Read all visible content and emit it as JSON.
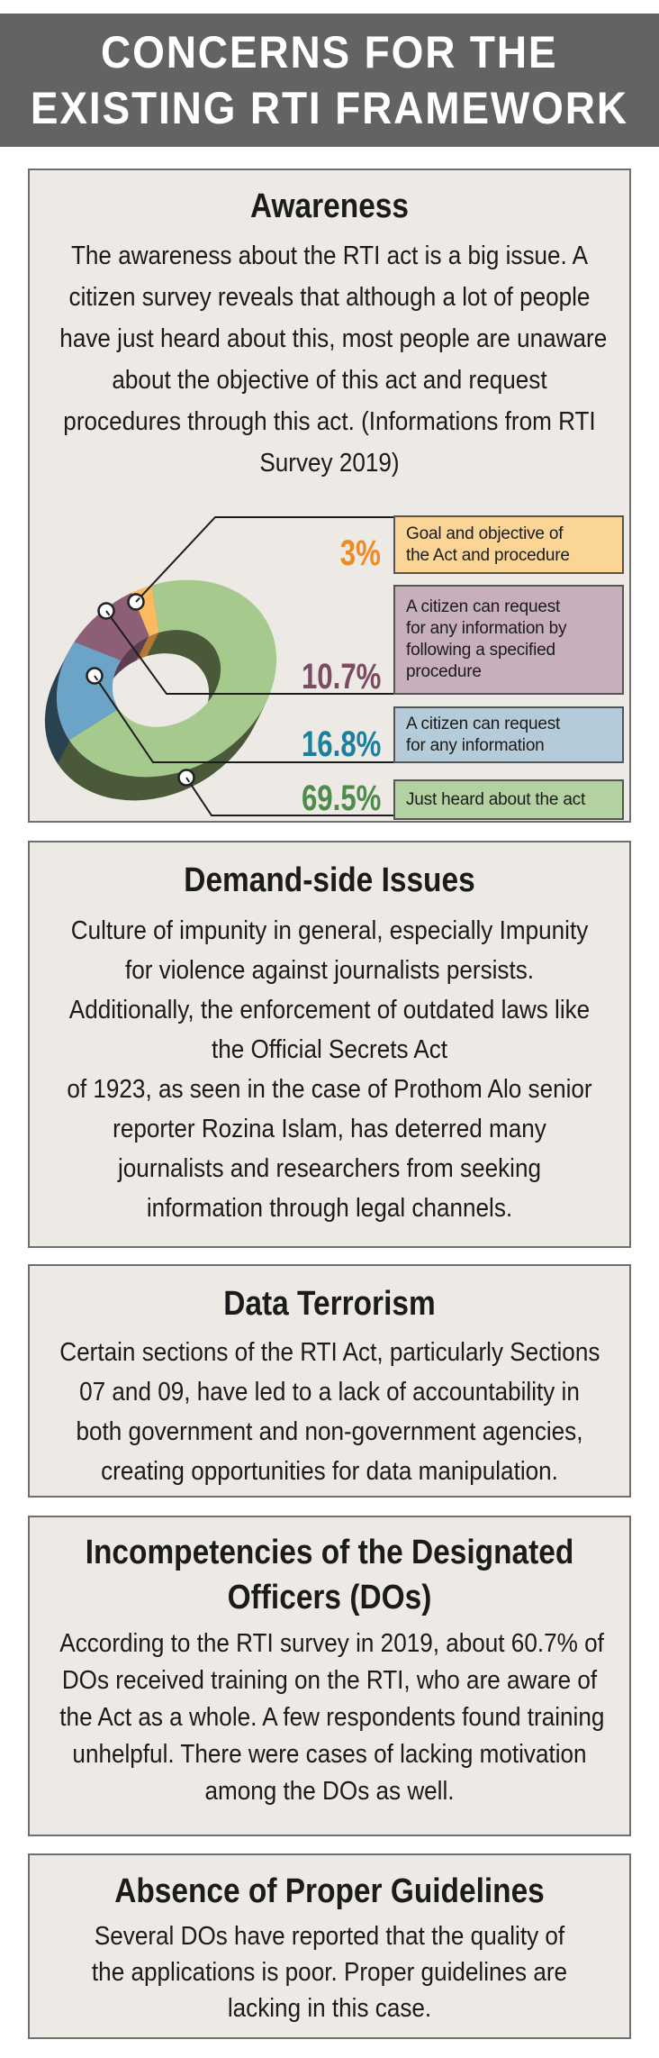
{
  "header": {
    "line1": "CONCERNS FOR THE",
    "line2": "EXISTING RTI FRAMEWORK"
  },
  "sections": {
    "awareness": {
      "title": "Awareness",
      "lines": [
        "The awareness about the RTI act is a big issue. A",
        "citizen survey reveals that although a lot of people",
        "have just heard about this, most people are unaware",
        "about the objective of this act and request",
        "procedures through this act. (Informations from RTI",
        "Survey 2019)"
      ]
    },
    "demand": {
      "title": "Demand-side Issues",
      "lines": [
        "Culture of impunity in general, especially Impunity",
        "for violence against journalists persists.",
        "Additionally, the enforcement of outdated laws like",
        "the Official Secrets Act",
        "of 1923, as seen in the case of Prothom Alo senior",
        "reporter Rozina Islam, has deterred many",
        "journalists and researchers from seeking",
        "information through legal channels."
      ]
    },
    "data_terrorism": {
      "title": "Data Terrorism",
      "lines": [
        "Certain sections of the RTI Act, particularly Sections",
        "07 and 09, have led to a lack of accountability in",
        "both government and non-government agencies,",
        "creating opportunities for data manipulation."
      ]
    },
    "incompetencies": {
      "title": "Incompetencies of the Designated\nOfficers (DOs)",
      "lines": [
        "According to the RTI survey in 2019, about 60.7% of",
        "DOs received training on the RTI, who are aware of",
        "the Act as a whole. A few respondents found training",
        "unhelpful. There were cases of lacking motivation",
        "among the DOs as well."
      ]
    },
    "guidelines": {
      "title": "Absence of Proper Guidelines",
      "lines": [
        "Several DOs have reported that the quality of",
        "the applications is poor. Proper guidelines are",
        "lacking in this case."
      ]
    }
  },
  "chart_data": {
    "type": "pie",
    "donut": true,
    "source_note": "RTI Survey 2019",
    "legend_position": "right",
    "slices": [
      {
        "label": "Goal and objective of\nthe Act and procedure",
        "pct_label": "3%",
        "value": 3,
        "color": "#f9ba62",
        "side_color": "#b07937",
        "box_fill": "#fbd596",
        "pct_color": "#ee8b23"
      },
      {
        "label": "A citizen can request\nfor any information by\nfollowing a specified\nprocedure",
        "pct_label": "10.7%",
        "value": 10.7,
        "color": "#8c5f76",
        "side_color": "#5d3e50",
        "box_fill": "#c7afbc",
        "pct_color": "#7b4a63"
      },
      {
        "label": "A citizen can request\nfor any information",
        "pct_label": "16.8%",
        "value": 16.8,
        "color": "#6ba4c6",
        "side_color": "#2a4150",
        "box_fill": "#b6cbd9",
        "pct_color": "#1b7f9e"
      },
      {
        "label": "Just heard about the act",
        "pct_label": "69.5%",
        "value": 69.5,
        "color": "#a6ca8d",
        "side_color": "#4a5939",
        "box_fill": "#b4d2a1",
        "pct_color": "#4d8c4b"
      }
    ]
  }
}
